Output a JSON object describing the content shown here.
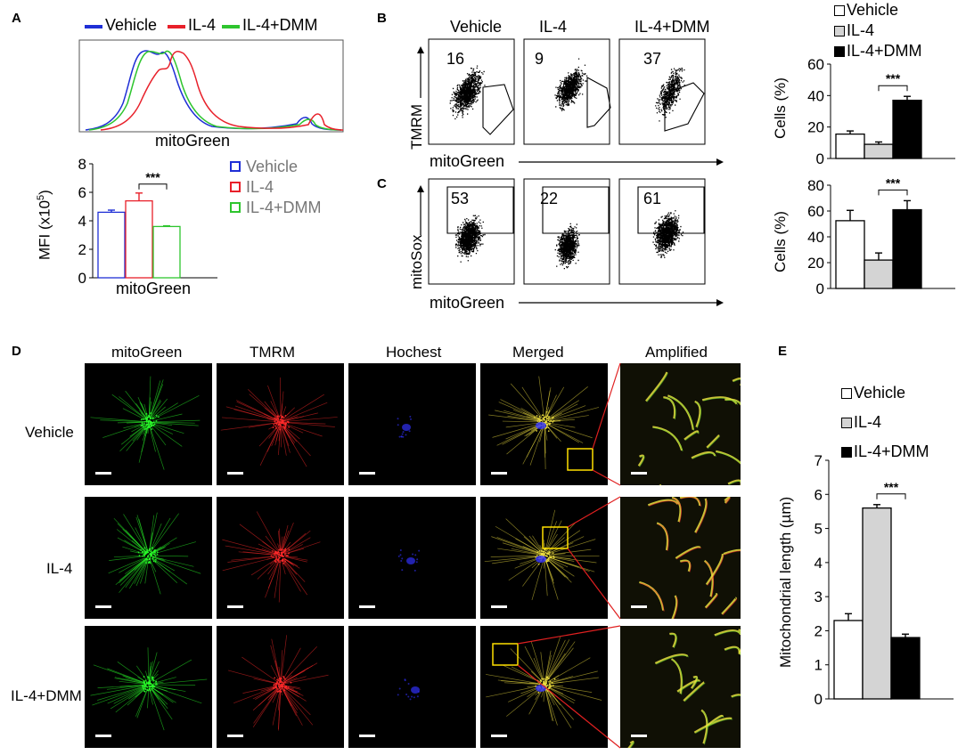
{
  "panels": {
    "a": "A",
    "b": "B",
    "c": "C",
    "d": "D",
    "e": "E"
  },
  "groups": [
    "Vehicle",
    "IL-4",
    "IL-4+DMM"
  ],
  "colors": {
    "vehicle": "#1f2fd6",
    "il4": "#e8202a",
    "dmm": "#2ec52e",
    "gray": "#d4d4d4",
    "black": "#000000"
  },
  "histogram": {
    "xlabel": "mitoGreen",
    "legend": [
      {
        "label": "Vehicle",
        "color": "#1f2fd6"
      },
      {
        "label": "IL-4",
        "color": "#e8202a"
      },
      {
        "label": "IL-4+DMM",
        "color": "#2ec52e"
      }
    ]
  },
  "flow": {
    "b": {
      "y_axis": "TMRM",
      "x_axis": "mitoGreen",
      "headers": [
        "Vehicle",
        "IL-4",
        "IL-4+DMM"
      ],
      "percents": [
        "16",
        "9",
        "37"
      ]
    },
    "c": {
      "y_axis": "mitoSox",
      "x_axis": "mitoGreen",
      "percents": [
        "53",
        "22",
        "61"
      ]
    }
  },
  "bar_legend_bc": [
    {
      "label": "Vehicle",
      "fill": "#ffffff"
    },
    {
      "label": "IL-4",
      "fill": "#d4d4d4"
    },
    {
      "label": "IL-4+DMM",
      "fill": "#000000"
    }
  ],
  "micro": {
    "columns": [
      "mitoGreen",
      "TMRM",
      "Hochest",
      "Merged",
      "Amplified"
    ],
    "rows": [
      "Vehicle",
      "IL-4",
      "IL-4+DMM"
    ]
  },
  "bar_legend_e": [
    {
      "label": "Vehicle",
      "fill": "#ffffff"
    },
    {
      "label": "IL-4",
      "fill": "#d4d4d4"
    },
    {
      "label": "IL-4+DMM",
      "fill": "#000000"
    }
  ],
  "chart_data": [
    {
      "id": "A-hist",
      "type": "line",
      "xlabel": "mitoGreen",
      "series": [
        {
          "name": "Vehicle"
        },
        {
          "name": "IL-4"
        },
        {
          "name": "IL-4+DMM"
        }
      ]
    },
    {
      "id": "A-mfi",
      "type": "bar",
      "categories": [
        "Vehicle",
        "IL-4",
        "IL-4+DMM"
      ],
      "values": [
        4.6,
        5.4,
        3.6
      ],
      "errors": [
        0.15,
        0.55,
        0.05
      ],
      "outline_colors": [
        "#1f2fd6",
        "#e8202a",
        "#2ec52e"
      ],
      "xlabel": "mitoGreen",
      "ylabel": "MFI (x10",
      "ylabel_sup": "5",
      "ylabel_end": ")",
      "ylim": [
        0,
        8
      ],
      "yticks": [
        "0",
        "2",
        "4",
        "6",
        "8"
      ],
      "significance": "***",
      "sig_pair": [
        1,
        2
      ]
    },
    {
      "id": "B-bar",
      "type": "bar",
      "categories": [
        "Vehicle",
        "IL-4",
        "IL-4+DMM"
      ],
      "values": [
        15.5,
        9,
        37
      ],
      "errors": [
        2,
        1.5,
        2.5
      ],
      "ylabel": "Cells (%)",
      "ylim": [
        0,
        60
      ],
      "yticks": [
        "0",
        "20",
        "40",
        "60"
      ],
      "significance": "***",
      "sig_pair": [
        1,
        2
      ]
    },
    {
      "id": "C-bar",
      "type": "bar",
      "categories": [
        "Vehicle",
        "IL-4",
        "IL-4+DMM"
      ],
      "values": [
        52.5,
        22,
        61
      ],
      "errors": [
        8,
        5.5,
        7
      ],
      "ylabel": "Cells (%)",
      "ylim": [
        0,
        80
      ],
      "yticks": [
        "0",
        "20",
        "40",
        "60",
        "80"
      ],
      "significance": "***",
      "sig_pair": [
        1,
        2
      ]
    },
    {
      "id": "E-bar",
      "type": "bar",
      "categories": [
        "Vehicle",
        "IL-4",
        "IL-4+DMM"
      ],
      "values": [
        2.3,
        5.6,
        1.8
      ],
      "errors": [
        0.2,
        0.1,
        0.1
      ],
      "ylabel": "Mitochondrial length (µm)",
      "ylim": [
        0,
        7
      ],
      "yticks": [
        "0",
        "1",
        "2",
        "3",
        "4",
        "5",
        "6",
        "7"
      ],
      "significance": "***",
      "sig_pair": [
        1,
        2
      ]
    }
  ]
}
